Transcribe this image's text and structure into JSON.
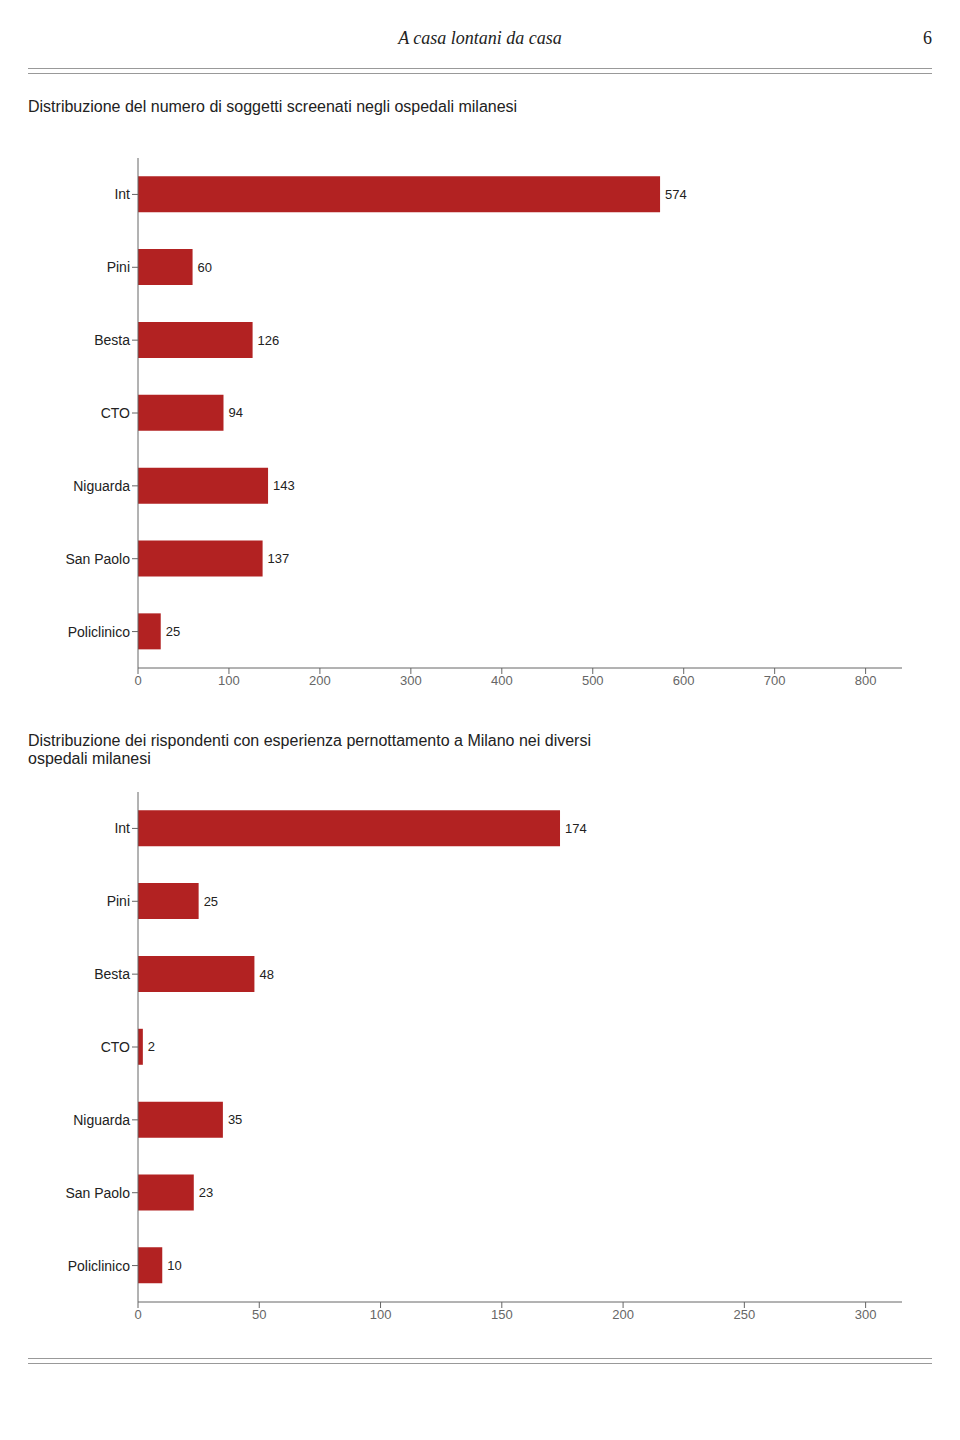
{
  "title": "A casa lontani da casa",
  "annotations": [
    "6"
  ],
  "chart_data": [
    {
      "type": "bar",
      "orientation": "horizontal",
      "title": "Distribuzione del numero di soggetti screenati negli ospedali milanesi",
      "categories": [
        "Int",
        "Pini",
        "Besta",
        "CTO",
        "Niguarda",
        "San Paolo",
        "Policlinico"
      ],
      "values": [
        574,
        60,
        126,
        94,
        143,
        137,
        25
      ],
      "color": "#b22222",
      "xlim": [
        0,
        840
      ],
      "xticks": [
        0,
        100,
        200,
        300,
        400,
        500,
        600,
        700,
        800
      ],
      "data_labels": true,
      "grid": false
    },
    {
      "type": "bar",
      "orientation": "horizontal",
      "title": "Distribuzione dei rispondenti con esperienza pernottamento a Milano nei diversi\nospedali milanesi",
      "categories": [
        "Int",
        "Pini",
        "Besta",
        "CTO",
        "Niguarda",
        "San Paolo",
        "Policlinico"
      ],
      "values": [
        174,
        25,
        48,
        2,
        35,
        23,
        10
      ],
      "color": "#b22222",
      "xlim": [
        0,
        315
      ],
      "xticks": [
        0,
        50,
        100,
        150,
        200,
        250,
        300
      ],
      "data_labels": true,
      "grid": false
    }
  ]
}
